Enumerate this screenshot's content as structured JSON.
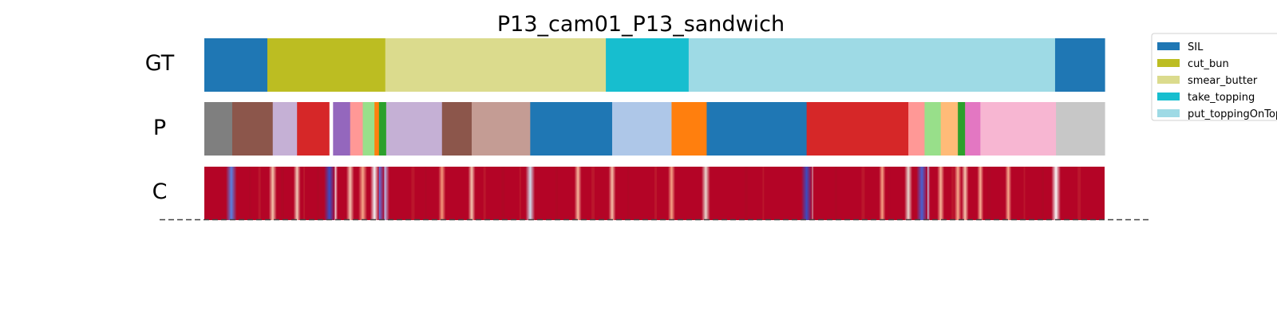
{
  "chart_data": {
    "type": "segmentation-strips",
    "title": "P13_cam01_P13_sandwich",
    "rows": [
      {
        "label": "GT",
        "segments": [
          {
            "label": "SIL",
            "start": 0.0,
            "end": 0.07,
            "color": "#1f77b4"
          },
          {
            "label": "cut_bun",
            "start": 0.07,
            "end": 0.201,
            "color": "#bcbd22"
          },
          {
            "label": "smear_butter",
            "start": 0.201,
            "end": 0.446,
            "color": "#dbdb8d"
          },
          {
            "label": "take_topping",
            "start": 0.446,
            "end": 0.538,
            "color": "#17becf"
          },
          {
            "label": "put_toppingOnTop",
            "start": 0.538,
            "end": 0.945,
            "color": "#9edae5"
          },
          {
            "label": "SIL",
            "start": 0.945,
            "end": 1.0,
            "color": "#1f77b4"
          }
        ]
      },
      {
        "label": "P",
        "segments": [
          {
            "start": 0.0,
            "end": 0.031,
            "color": "#7f7f7f"
          },
          {
            "start": 0.031,
            "end": 0.076,
            "color": "#8c564b"
          },
          {
            "start": 0.076,
            "end": 0.103,
            "color": "#c5b0d5"
          },
          {
            "start": 0.103,
            "end": 0.139,
            "color": "#d62728"
          },
          {
            "start": 0.139,
            "end": 0.143,
            "color": "#ffffff"
          },
          {
            "start": 0.143,
            "end": 0.162,
            "color": "#9467bd"
          },
          {
            "start": 0.162,
            "end": 0.176,
            "color": "#ff9896"
          },
          {
            "start": 0.176,
            "end": 0.189,
            "color": "#98df8a"
          },
          {
            "start": 0.189,
            "end": 0.194,
            "color": "#ff7f0e"
          },
          {
            "start": 0.194,
            "end": 0.202,
            "color": "#2ca02c"
          },
          {
            "start": 0.202,
            "end": 0.264,
            "color": "#c5b0d5"
          },
          {
            "start": 0.264,
            "end": 0.297,
            "color": "#8c564b"
          },
          {
            "start": 0.297,
            "end": 0.362,
            "color": "#c49c94"
          },
          {
            "start": 0.362,
            "end": 0.453,
            "color": "#1f77b4"
          },
          {
            "start": 0.453,
            "end": 0.519,
            "color": "#aec7e8"
          },
          {
            "start": 0.519,
            "end": 0.558,
            "color": "#ff7f0e"
          },
          {
            "start": 0.558,
            "end": 0.669,
            "color": "#1f77b4"
          },
          {
            "start": 0.669,
            "end": 0.782,
            "color": "#d62728"
          },
          {
            "start": 0.782,
            "end": 0.8,
            "color": "#ff9896"
          },
          {
            "start": 0.8,
            "end": 0.818,
            "color": "#98df8a"
          },
          {
            "start": 0.818,
            "end": 0.837,
            "color": "#ffbb78"
          },
          {
            "start": 0.837,
            "end": 0.845,
            "color": "#2ca02c"
          },
          {
            "start": 0.845,
            "end": 0.862,
            "color": "#e377c2"
          },
          {
            "start": 0.862,
            "end": 0.946,
            "color": "#f7b6d2"
          },
          {
            "start": 0.946,
            "end": 1.0,
            "color": "#c7c7c7"
          }
        ]
      },
      {
        "label": "C",
        "base_color": "#b40426",
        "transitions": [
          {
            "pos": 0.03,
            "color": "#5a7fe0",
            "strength": 1.0
          },
          {
            "pos": 0.076,
            "color": "#f4c3ab",
            "strength": 0.6
          },
          {
            "pos": 0.103,
            "color": "#f2cbb7",
            "strength": 0.5
          },
          {
            "pos": 0.139,
            "color": "#3b4cc0",
            "strength": 1.0
          },
          {
            "pos": 0.143,
            "color": "#f7f7f7",
            "strength": 0.8
          },
          {
            "pos": 0.162,
            "color": "#f3c4ae",
            "strength": 0.6
          },
          {
            "pos": 0.176,
            "color": "#f7a889",
            "strength": 0.7
          },
          {
            "pos": 0.189,
            "color": "#f1f1f1",
            "strength": 0.7
          },
          {
            "pos": 0.194,
            "color": "#5977e3",
            "strength": 1.0
          },
          {
            "pos": 0.2,
            "color": "#b5cdfa",
            "strength": 0.9
          },
          {
            "pos": 0.264,
            "color": "#f4987a",
            "strength": 0.5
          },
          {
            "pos": 0.297,
            "color": "#f4c6af",
            "strength": 0.5
          },
          {
            "pos": 0.362,
            "color": "#cfdaea",
            "strength": 0.8
          },
          {
            "pos": 0.415,
            "color": "#f7b89c",
            "strength": 0.5
          },
          {
            "pos": 0.453,
            "color": "#f6bfa6",
            "strength": 0.5
          },
          {
            "pos": 0.519,
            "color": "#f6a385",
            "strength": 0.5
          },
          {
            "pos": 0.557,
            "color": "#e8d6cc",
            "strength": 0.7
          },
          {
            "pos": 0.669,
            "color": "#3b4cc0",
            "strength": 1.0
          },
          {
            "pos": 0.672,
            "color": "#d8dce2",
            "strength": 0.7
          },
          {
            "pos": 0.753,
            "color": "#f6a283",
            "strength": 0.4
          },
          {
            "pos": 0.782,
            "color": "#e7d7ce",
            "strength": 0.6
          },
          {
            "pos": 0.797,
            "color": "#4961d2",
            "strength": 1.0
          },
          {
            "pos": 0.801,
            "color": "#c0d4f5",
            "strength": 0.8
          },
          {
            "pos": 0.818,
            "color": "#f7b396",
            "strength": 0.5
          },
          {
            "pos": 0.837,
            "color": "#f7ac8e",
            "strength": 0.5
          },
          {
            "pos": 0.845,
            "color": "#f4c5ad",
            "strength": 0.5
          },
          {
            "pos": 0.862,
            "color": "#f7b093",
            "strength": 0.4
          },
          {
            "pos": 0.893,
            "color": "#f7aa8c",
            "strength": 0.4
          },
          {
            "pos": 0.946,
            "color": "#f7f7f7",
            "strength": 0.8
          }
        ]
      }
    ],
    "legend": {
      "placement": "right",
      "entries": [
        {
          "label": "SIL",
          "color": "#1f77b4"
        },
        {
          "label": "cut_bun",
          "color": "#bcbd22"
        },
        {
          "label": "smear_butter",
          "color": "#dbdb8d"
        },
        {
          "label": "take_topping",
          "color": "#17becf"
        },
        {
          "label": "put_toppingOnTop",
          "color": "#9edae5"
        }
      ]
    },
    "baseline": "dashed"
  }
}
